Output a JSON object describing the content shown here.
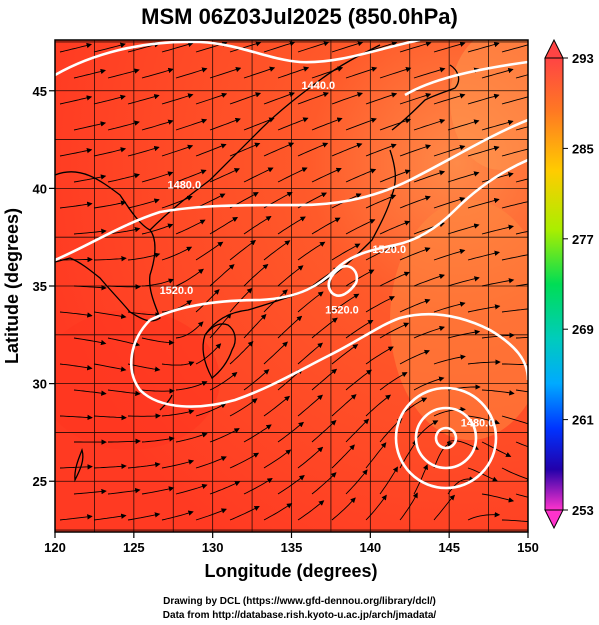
{
  "title": "MSM 06Z03Jul2025 (850.0hPa)",
  "xlabel": "Longitude (degrees)",
  "ylabel": "Latitude  (degrees)",
  "x_ticks": [
    120,
    125,
    130,
    135,
    140,
    145,
    150
  ],
  "y_ticks": [
    25,
    30,
    35,
    40,
    45
  ],
  "xlim": [
    120,
    150
  ],
  "ylim": [
    22.4,
    47.6
  ],
  "colorbar": {
    "ticks": [
      293,
      285,
      277,
      269,
      261,
      253
    ],
    "range": [
      253,
      293
    ]
  },
  "contours": [
    {
      "label": "1440.0",
      "lon": 136.7,
      "lat": 45.1
    },
    {
      "label": "1480.0",
      "lon": 128.2,
      "lat": 40.0
    },
    {
      "label": "1520.0",
      "lon": 141.2,
      "lat": 36.7
    },
    {
      "label": "1520.0",
      "lon": 127.7,
      "lat": 34.6
    },
    {
      "label": "1520.0",
      "lon": 138.2,
      "lat": 33.6
    },
    {
      "label": "1480.0",
      "lon": 146.8,
      "lat": 27.8
    }
  ],
  "footer": {
    "line1": "Drawing by DCL (https://www.gfd-dennou.org/library/dcl/)",
    "line2": "Data from http://database.rish.kyoto-u.ac.jp/arch/jmadata/"
  },
  "colors": {
    "field": "#ff4422",
    "field_light": "#ff7a44",
    "contour": "#ffffff",
    "coast": "#000000"
  }
}
